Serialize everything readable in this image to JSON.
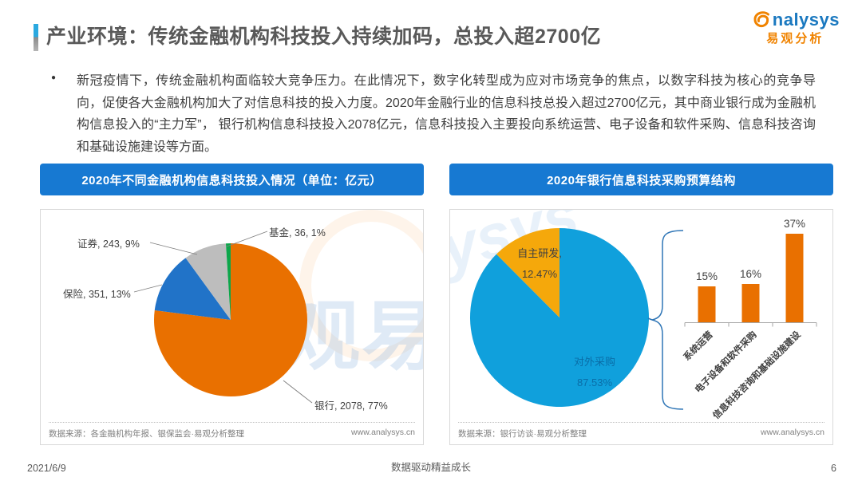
{
  "page": {
    "title": "产业环境：传统金融机构科技投入持续加码，总投入超2700亿",
    "logo": {
      "brand_rest": "nalysys",
      "brand_cn": "易观分析"
    },
    "bullet": "●",
    "summary": "新冠疫情下，传统金融机构面临较大竞争压力。在此情况下，数字化转型成为应对市场竞争的焦点，以数字科技为核心的竞争导向，促使各大金融机构加大了对信息科技的投入力度。2020年金融行业的信息科技总投入超过2700亿元，其中商业银行成为金融机构信息投入的“主力军”， 银行机构信息科技投入2078亿元，信息科技投入主要投向系统运营、电子设备和软件采购、信息科技咨询和基础设施建设等方面。",
    "watermark": {
      "cn": "易观",
      "latin": "ysys"
    },
    "footer": {
      "date": "2021/6/9",
      "slogan": "数据驱动精益成长",
      "page_number": "6"
    },
    "colors": {
      "header_band": "#1779D2",
      "brand_blue": "#1B79C0",
      "brand_orange": "#F08300"
    }
  },
  "left_panel": {
    "header": "2020年不同金融机构信息科技投入情况（单位：亿元）",
    "source": "数据来源：各金融机构年报、银保监会·易观分析整理",
    "website": "www.analysys.cn"
  },
  "right_panel": {
    "header": "2020年银行信息科技采购预算结构",
    "source": "数据来源：银行访谈·易观分析整理",
    "website": "www.analysys.cn"
  },
  "chart_data": [
    {
      "type": "pie",
      "title": "2020年不同金融机构信息科技投入情况",
      "unit": "亿元",
      "start_angle_deg": 0,
      "direction": "clockwise",
      "legend": false,
      "slices": [
        {
          "name": "银行",
          "value": 2078,
          "pct": 77,
          "color": "#E97000",
          "label": "银行, 2078, 77%"
        },
        {
          "name": "保险",
          "value": 351,
          "pct": 13,
          "color": "#2173C8",
          "label": "保险, 351, 13%"
        },
        {
          "name": "证券",
          "value": 243,
          "pct": 9,
          "color": "#BDBDBD",
          "label": "证券, 243, 9%"
        },
        {
          "name": "基金",
          "value": 36,
          "pct": 1,
          "color": "#0DA64B",
          "label": "基金, 36, 1%"
        }
      ]
    },
    {
      "type": "pie",
      "title": "2020年银行信息科技采购预算结构",
      "start_angle_deg": 0,
      "direction": "clockwise",
      "legend": false,
      "slices": [
        {
          "name": "对外采购",
          "pct": 87.53,
          "color": "#10A0DC",
          "label_lines": [
            "对外采购",
            "87.53%"
          ]
        },
        {
          "name": "自主研发",
          "pct": 12.47,
          "color": "#F5A80B",
          "label_lines": [
            "自主研发,",
            "12.47%"
          ]
        }
      ]
    },
    {
      "type": "bar",
      "categories": [
        "系统运营",
        "电子设备和软件采购",
        "信息科技咨询和基础设施建设"
      ],
      "values": [
        15,
        16,
        37
      ],
      "value_labels": [
        "15%",
        "16%",
        "37%"
      ],
      "bar_color": "#E97000",
      "ylim": [
        0,
        40
      ],
      "grid": false,
      "legend": false
    }
  ]
}
